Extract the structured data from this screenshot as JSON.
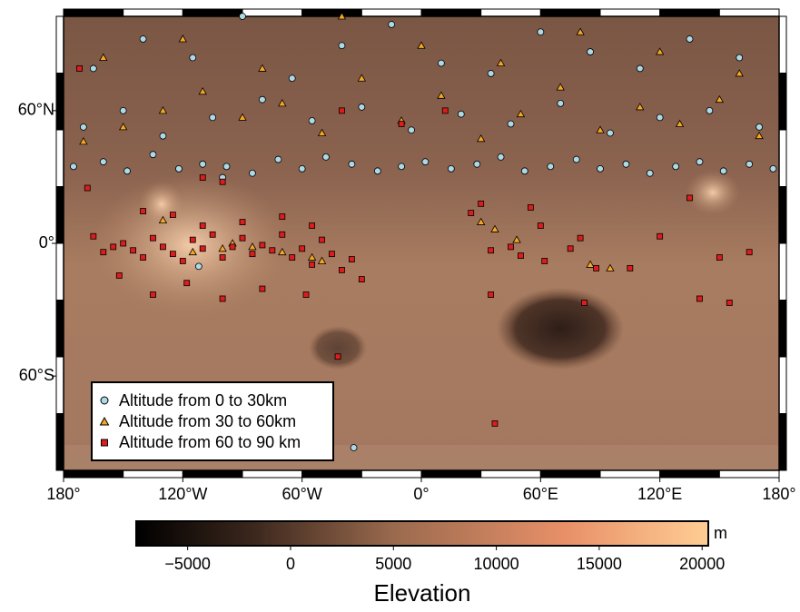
{
  "chart_data": {
    "type": "scatter",
    "projection": "mercator",
    "xlim": [
      -180,
      180
    ],
    "ylim": [
      -78,
      78
    ],
    "xticks": [
      {
        "value": -180,
        "label": "180°"
      },
      {
        "value": -120,
        "label": "120°W"
      },
      {
        "value": -60,
        "label": "60°W"
      },
      {
        "value": 0,
        "label": "0°"
      },
      {
        "value": 60,
        "label": "60°E"
      },
      {
        "value": 120,
        "label": "120°E"
      },
      {
        "value": 180,
        "label": "180°"
      }
    ],
    "yticks": [
      {
        "value": 60,
        "label": "60°N"
      },
      {
        "value": 0,
        "label": "0°"
      },
      {
        "value": -60,
        "label": "60°S"
      }
    ],
    "legend": "bottom-left",
    "series": [
      {
        "name": "Altitude from 0 to 30km",
        "color": "#add8e6",
        "marker": "circle",
        "x": [
          -175,
          -160,
          -148,
          -135,
          -122,
          -110,
          -98,
          -85,
          -72,
          -60,
          -48,
          -35,
          -22,
          -10,
          2,
          15,
          28,
          40,
          52,
          65,
          78,
          90,
          103,
          115,
          128,
          140,
          152,
          165,
          177,
          -170,
          -150,
          -130,
          -105,
          -80,
          -55,
          -30,
          -5,
          20,
          45,
          70,
          95,
          120,
          145,
          170,
          -165,
          -140,
          -115,
          -90,
          -65,
          -40,
          -15,
          10,
          35,
          60,
          85,
          110,
          135,
          160,
          -100,
          -34,
          -112
        ],
        "y": [
          40,
          42,
          38,
          45,
          39,
          41,
          40,
          37,
          43,
          39,
          44,
          41,
          38,
          40,
          42,
          39,
          41,
          44,
          38,
          40,
          43,
          39,
          41,
          37,
          40,
          42,
          38,
          41,
          39,
          55,
          60,
          52,
          58,
          63,
          57,
          61,
          54,
          59,
          56,
          62,
          53,
          58,
          60,
          55,
          70,
          75,
          72,
          78,
          68,
          74,
          77,
          71,
          69,
          76,
          73,
          70,
          75,
          72,
          35,
          -75,
          -13
        ]
      },
      {
        "name": "Altitude from 30 to 60km",
        "color": "#f5a623",
        "marker": "triangle",
        "x": [
          -170,
          -150,
          -130,
          -110,
          -90,
          -70,
          -50,
          -30,
          -10,
          10,
          30,
          50,
          70,
          90,
          110,
          130,
          150,
          170,
          -160,
          -120,
          -80,
          -40,
          0,
          40,
          80,
          120,
          160,
          -130,
          -115,
          -100,
          -95,
          -85,
          -70,
          -55,
          -50,
          30,
          37,
          48,
          85,
          95
        ],
        "y": [
          50,
          55,
          60,
          65,
          58,
          62,
          53,
          68,
          57,
          64,
          51,
          59,
          66,
          54,
          61,
          56,
          63,
          52,
          72,
          75,
          70,
          78,
          74,
          71,
          76,
          73,
          69,
          13,
          -5,
          -3,
          0,
          -2,
          -5,
          -8,
          -10,
          12,
          8,
          2,
          -12,
          -14
        ]
      },
      {
        "name": "Altitude from 60 to 90 km",
        "color": "#dd1c1c",
        "marker": "square",
        "x": [
          -165,
          -160,
          -155,
          -150,
          -145,
          -140,
          -135,
          -130,
          -125,
          -120,
          -115,
          -110,
          -105,
          -100,
          -95,
          -90,
          -85,
          -80,
          -75,
          -70,
          -65,
          -60,
          -55,
          -50,
          -45,
          -40,
          -35,
          -30,
          -140,
          -125,
          -110,
          -90,
          -70,
          -55,
          -152,
          -118,
          -100,
          -80,
          -58,
          -135,
          -42,
          25,
          30,
          35,
          45,
          50,
          55,
          60,
          62,
          75,
          80,
          88,
          105,
          120,
          135,
          140,
          150,
          155,
          165,
          -168,
          -172,
          -110,
          -100,
          35,
          82,
          37,
          -10,
          12,
          -40
        ],
        "y": [
          4,
          -5,
          -2,
          0,
          -4,
          -8,
          3,
          -2,
          -6,
          -10,
          2,
          -3,
          5,
          -8,
          -2,
          3,
          -6,
          -1,
          -4,
          5,
          -8,
          -3,
          -12,
          2,
          -6,
          -15,
          -9,
          -20,
          18,
          16,
          10,
          12,
          15,
          10,
          -18,
          -22,
          -30,
          -25,
          -28,
          -28,
          -54,
          17,
          22,
          -4,
          -2,
          -7,
          20,
          10,
          -10,
          -3,
          3,
          -14,
          -14,
          4,
          25,
          -30,
          -8,
          -32,
          -5,
          30,
          70,
          35,
          33,
          -28,
          -32,
          -71,
          56,
          60,
          60
        ]
      }
    ],
    "colorbar": {
      "label": "Elevation",
      "unit": "m",
      "lim": [
        -7500,
        20300
      ],
      "ticks": [
        {
          "value": -5000,
          "label": "−5000"
        },
        0,
        5000,
        10000,
        15000,
        20000
      ]
    }
  }
}
